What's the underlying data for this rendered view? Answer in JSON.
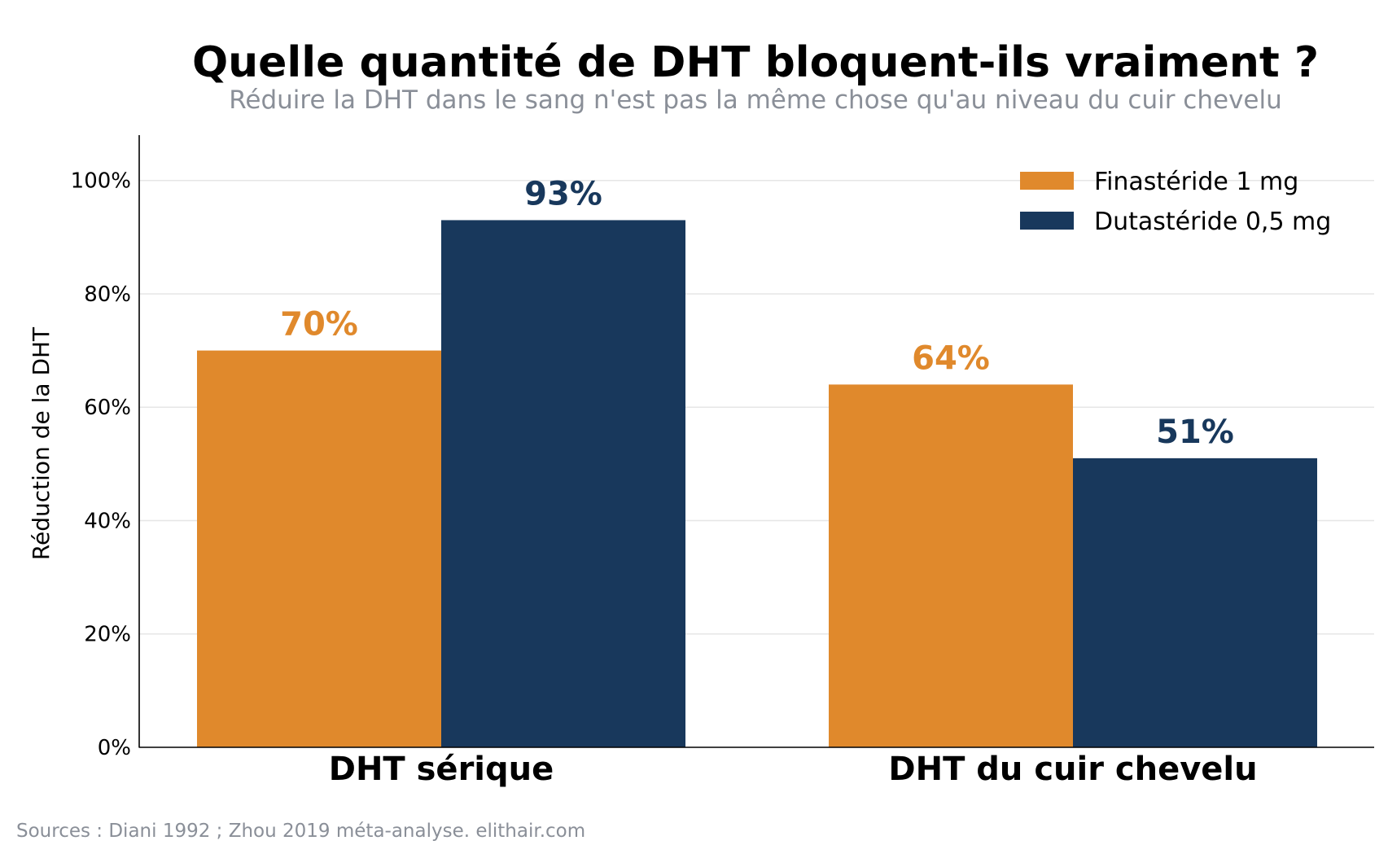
{
  "chart_data": {
    "type": "bar",
    "title": "Quelle quantité de DHT bloquent-ils vraiment ?",
    "subtitle": "Réduire la DHT dans le sang n'est pas la même chose qu'au niveau du cuir chevelu",
    "xlabel": "",
    "ylabel": "Réduction de la DHT",
    "categories": [
      "DHT sérique",
      "DHT du cuir chevelu"
    ],
    "series": [
      {
        "name": "Finastéride 1 mg",
        "color": "#e0892c",
        "values": [
          70,
          64
        ],
        "labels": [
          "70%",
          "64%"
        ]
      },
      {
        "name": "Dutastéride 0,5 mg",
        "color": "#18385c",
        "values": [
          93,
          51
        ],
        "labels": [
          "93%",
          "51%"
        ]
      }
    ],
    "ylim": [
      0,
      108
    ],
    "yticks": [
      0,
      20,
      40,
      60,
      80,
      100
    ],
    "ytick_labels": [
      "0%",
      "20%",
      "40%",
      "60%",
      "80%",
      "100%"
    ],
    "grid": "horizontal",
    "legend_position": "top-right",
    "source": "Sources : Diani 1992 ; Zhou 2019 méta-analyse. elithair.com"
  }
}
